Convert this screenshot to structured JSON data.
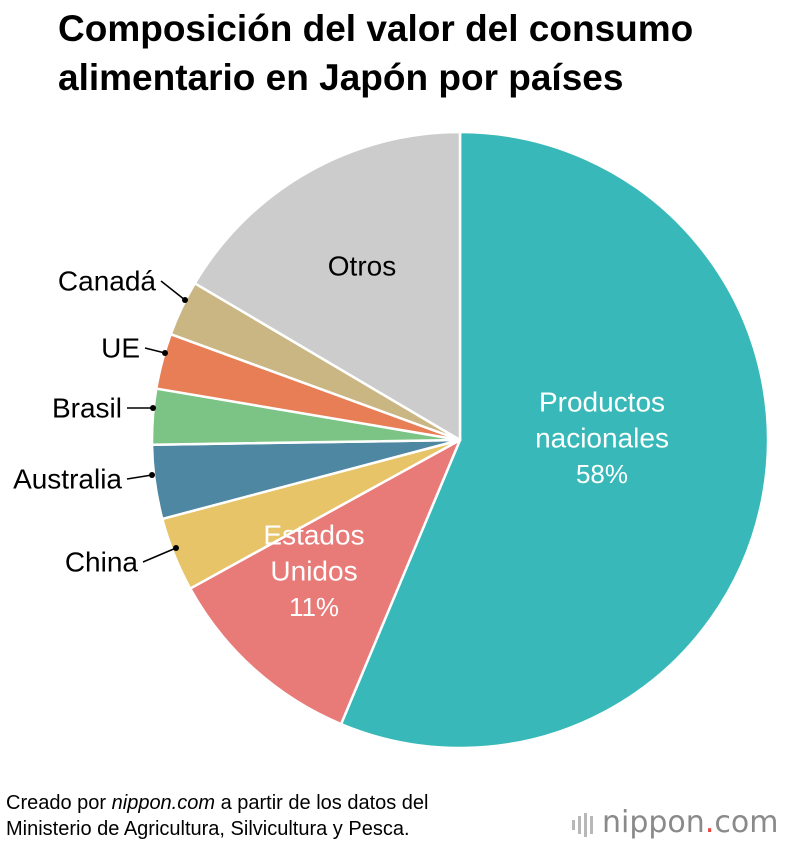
{
  "chart_data": {
    "type": "pie",
    "title": "Composición del valor del consumo alimentario en Japón por países",
    "title_lines": [
      "Composición del valor del consumo",
      "alimentario en Japón por países"
    ],
    "slices": [
      {
        "label": "Productos nacionales",
        "label_lines": [
          "Productos",
          "nacionales"
        ],
        "value": 58,
        "value_label": "58%",
        "color": "#38b8b8",
        "label_color": "#ffffff",
        "label_placement": "inside"
      },
      {
        "label": "Estados Unidos",
        "label_lines": [
          "Estados",
          "Unidos"
        ],
        "value": 11,
        "value_label": "11%",
        "color": "#e87a78",
        "label_color": "#ffffff",
        "label_placement": "inside"
      },
      {
        "label": "China",
        "label_lines": [
          "China"
        ],
        "value": 4,
        "color": "#e8c468",
        "label_color": "#000000",
        "label_placement": "outside"
      },
      {
        "label": "Australia",
        "label_lines": [
          "Australia"
        ],
        "value": 4,
        "color": "#4e87a1",
        "label_color": "#000000",
        "label_placement": "outside"
      },
      {
        "label": "Brasil",
        "label_lines": [
          "Brasil"
        ],
        "value": 3,
        "color": "#7cc485",
        "label_color": "#000000",
        "label_placement": "outside"
      },
      {
        "label": "UE",
        "label_lines": [
          "UE"
        ],
        "value": 3,
        "color": "#e87e56",
        "label_color": "#000000",
        "label_placement": "outside"
      },
      {
        "label": "Canadá",
        "label_lines": [
          "Canadá"
        ],
        "value": 3,
        "color": "#c9b682",
        "label_color": "#000000",
        "label_placement": "outside"
      },
      {
        "label": "Otros",
        "label_lines": [
          "Otros"
        ],
        "value": 17,
        "color": "#cccccc",
        "label_color": "#000000",
        "label_placement": "inside"
      }
    ],
    "start": "12 o'clock",
    "direction": "clockwise"
  },
  "footer": {
    "line1_prefix": "Creado por ",
    "line1_site": "nippon.com",
    "line1_suffix": " a partir de los datos del",
    "line2": "Ministerio de Agricultura, Silvicultura y Pesca."
  },
  "logo": {
    "name": "nippon",
    "dot": ".",
    "suffix": "com"
  }
}
